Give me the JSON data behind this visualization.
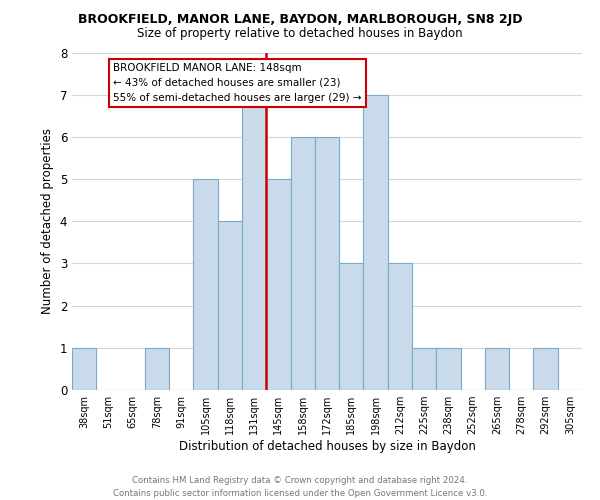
{
  "title": "BROOKFIELD, MANOR LANE, BAYDON, MARLBOROUGH, SN8 2JD",
  "subtitle": "Size of property relative to detached houses in Baydon",
  "xlabel": "Distribution of detached houses by size in Baydon",
  "ylabel": "Number of detached properties",
  "footer_line1": "Contains HM Land Registry data © Crown copyright and database right 2024.",
  "footer_line2": "Contains public sector information licensed under the Open Government Licence v3.0.",
  "bin_labels": [
    "38sqm",
    "51sqm",
    "65sqm",
    "78sqm",
    "91sqm",
    "105sqm",
    "118sqm",
    "131sqm",
    "145sqm",
    "158sqm",
    "172sqm",
    "185sqm",
    "198sqm",
    "212sqm",
    "225sqm",
    "238sqm",
    "252sqm",
    "265sqm",
    "278sqm",
    "292sqm",
    "305sqm"
  ],
  "bar_heights": [
    1,
    0,
    0,
    1,
    0,
    5,
    4,
    7,
    5,
    6,
    6,
    3,
    7,
    3,
    1,
    1,
    0,
    1,
    0,
    1,
    0
  ],
  "bar_color": "#c9daea",
  "bar_edge_color": "#7aaac8",
  "marker_bin_index": 8,
  "marker_line_color": "#cc0000",
  "annotation_line1": "BROOKFIELD MANOR LANE: 148sqm",
  "annotation_line2": "← 43% of detached houses are smaller (23)",
  "annotation_line3": "55% of semi-detached houses are larger (29) →",
  "annotation_box_edge_color": "#cc0000",
  "annotation_box_face_color": "#ffffff",
  "ylim": [
    0,
    8
  ],
  "background_color": "#ffffff",
  "grid_color": "#d0d8e0"
}
